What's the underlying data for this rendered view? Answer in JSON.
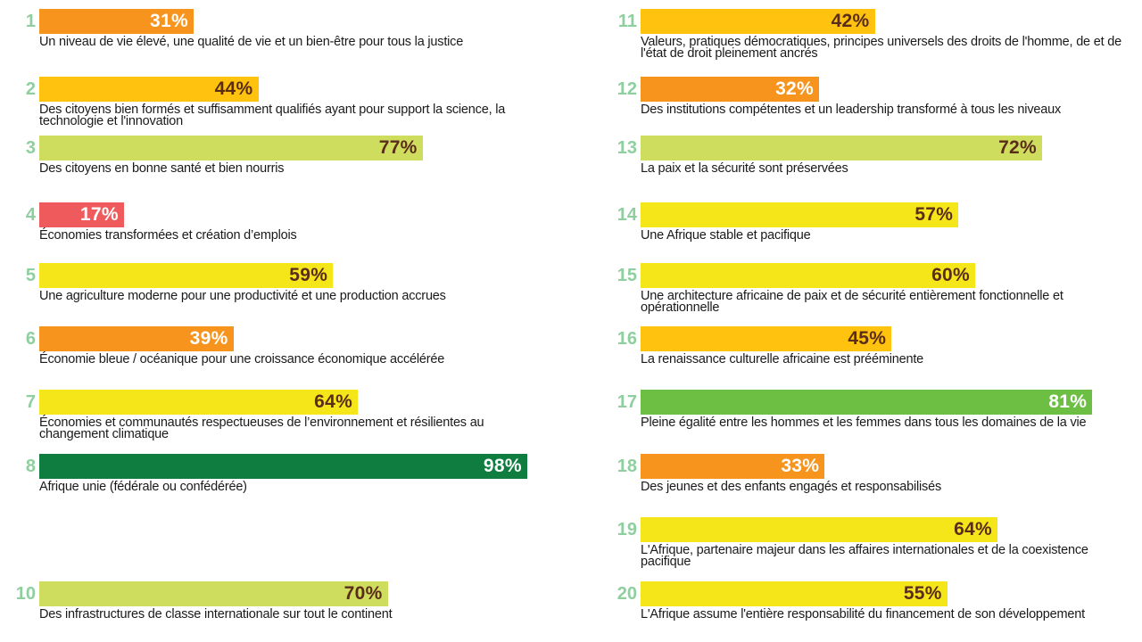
{
  "chart_data": {
    "type": "bar",
    "orientation": "horizontal",
    "xlim": [
      0,
      100
    ],
    "unit": "%",
    "items": [
      {
        "num": "1",
        "value": 31,
        "label": "Un niveau de vie élevé, une qualité de vie et un bien-être pour tous la justice",
        "color": "#f7941d",
        "text_color": "#ffffff",
        "column": "left"
      },
      {
        "num": "2",
        "value": 44,
        "label": "Des citoyens bien formés et suffisamment qualifiés ayant pour support la science, la technologie et l'innovation",
        "color": "#ffc20e",
        "text_color": "#5a2d1a",
        "column": "left"
      },
      {
        "num": "3",
        "value": 77,
        "label": "Des citoyens en bonne santé et bien nourris",
        "color": "#cfdd5e",
        "text_color": "#5a2d1a",
        "column": "left"
      },
      {
        "num": "4",
        "value": 17,
        "label": "Économies transformées et création d’emplois",
        "color": "#ef5a5d",
        "text_color": "#ffffff",
        "column": "left"
      },
      {
        "num": "5",
        "value": 59,
        "label": "Une agriculture moderne pour une productivité et une production accrues",
        "color": "#f5e61a",
        "text_color": "#5a2d1a",
        "column": "left"
      },
      {
        "num": "6",
        "value": 39,
        "label": "Économie bleue / océanique pour une croissance économique accélérée",
        "color": "#f7941d",
        "text_color": "#ffffff",
        "column": "left"
      },
      {
        "num": "7",
        "value": 64,
        "label": "Économies et communautés respectueuses de l’environnement et résilientes au changement climatique",
        "color": "#f5e61a",
        "text_color": "#5a2d1a",
        "column": "left"
      },
      {
        "num": "8",
        "value": 98,
        "label": "Afrique unie (fédérale ou confédérée)",
        "color": "#0e7d3f",
        "text_color": "#ffffff",
        "column": "left"
      },
      {
        "num": "10",
        "value": 70,
        "label": "Des infrastructures de classe internationale sur tout le continent",
        "color": "#cfdd5e",
        "text_color": "#5a2d1a",
        "column": "left"
      },
      {
        "num": "11",
        "value": 42,
        "label": "Valeurs, pratiques démocratiques, principes universels des droits de l'homme, de et de l'état de droit pleinement ancrés",
        "color": "#ffc20e",
        "text_color": "#5a2d1a",
        "column": "right"
      },
      {
        "num": "12",
        "value": 32,
        "label": "Des institutions compétentes et un leadership transformé à tous les niveaux",
        "color": "#f7941d",
        "text_color": "#ffffff",
        "column": "right"
      },
      {
        "num": "13",
        "value": 72,
        "label": "La paix et la sécurité sont préservées",
        "color": "#cfdd5e",
        "text_color": "#5a2d1a",
        "column": "right"
      },
      {
        "num": "14",
        "value": 57,
        "label": "Une Afrique stable et pacifique",
        "color": "#f5e61a",
        "text_color": "#5a2d1a",
        "column": "right"
      },
      {
        "num": "15",
        "value": 60,
        "label": "Une architecture africaine de paix et de sécurité entièrement fonctionnelle et opérationnelle",
        "color": "#f5e61a",
        "text_color": "#5a2d1a",
        "column": "right"
      },
      {
        "num": "16",
        "value": 45,
        "label": "La renaissance culturelle africaine est prééminente",
        "color": "#ffc20e",
        "text_color": "#5a2d1a",
        "column": "right"
      },
      {
        "num": "17",
        "value": 81,
        "label": "Pleine égalité entre les hommes et les femmes dans tous les domaines de la vie",
        "color": "#6dbf44",
        "text_color": "#ffffff",
        "column": "right"
      },
      {
        "num": "18",
        "value": 33,
        "label": "Des jeunes et des enfants engagés et responsabilisés",
        "color": "#f7941d",
        "text_color": "#ffffff",
        "column": "right"
      },
      {
        "num": "19",
        "value": 64,
        "label": "L'Afrique, partenaire majeur dans les affaires internationales et de la coexistence pacifique",
        "color": "#f5e61a",
        "text_color": "#5a2d1a",
        "column": "right"
      },
      {
        "num": "20",
        "value": 55,
        "label": "L'Afrique  assume l'entière responsabilité du financement de son développement",
        "color": "#f5e61a",
        "text_color": "#5a2d1a",
        "column": "right"
      }
    ]
  }
}
